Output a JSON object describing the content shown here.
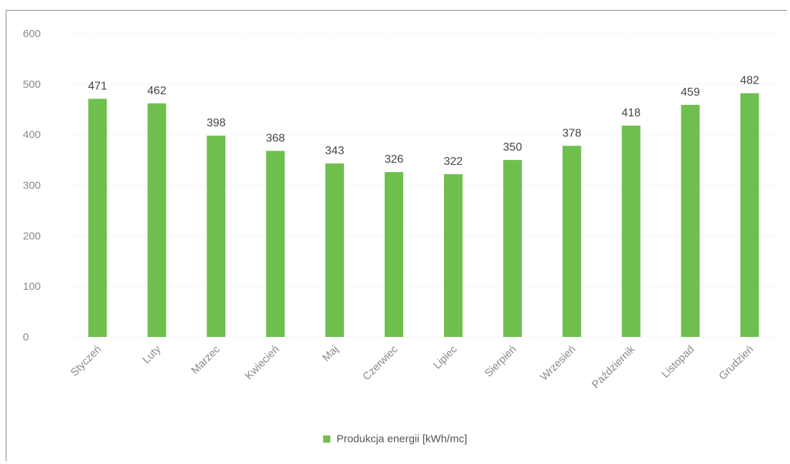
{
  "chart_data": {
    "type": "bar",
    "categories": [
      "Styczeń",
      "Luty",
      "Marzec",
      "Kwiecień",
      "Maj",
      "Czerwiec",
      "Lipiec",
      "Sierpień",
      "Wrzesień",
      "Październik",
      "Listopad",
      "Grudzień"
    ],
    "series": [
      {
        "name": "Produkcja energii [kWh/mc]",
        "values": [
          471,
          462,
          398,
          368,
          343,
          326,
          322,
          350,
          378,
          418,
          459,
          482
        ]
      }
    ],
    "ylim": [
      0,
      600
    ],
    "yticks": [
      0,
      100,
      200,
      300,
      400,
      500,
      600
    ],
    "grid": true,
    "legend_position": "bottom",
    "colors": {
      "bar": "#6fbf4f",
      "axis_text": "#8a8a8a",
      "grid": "#e4e4e4"
    }
  }
}
